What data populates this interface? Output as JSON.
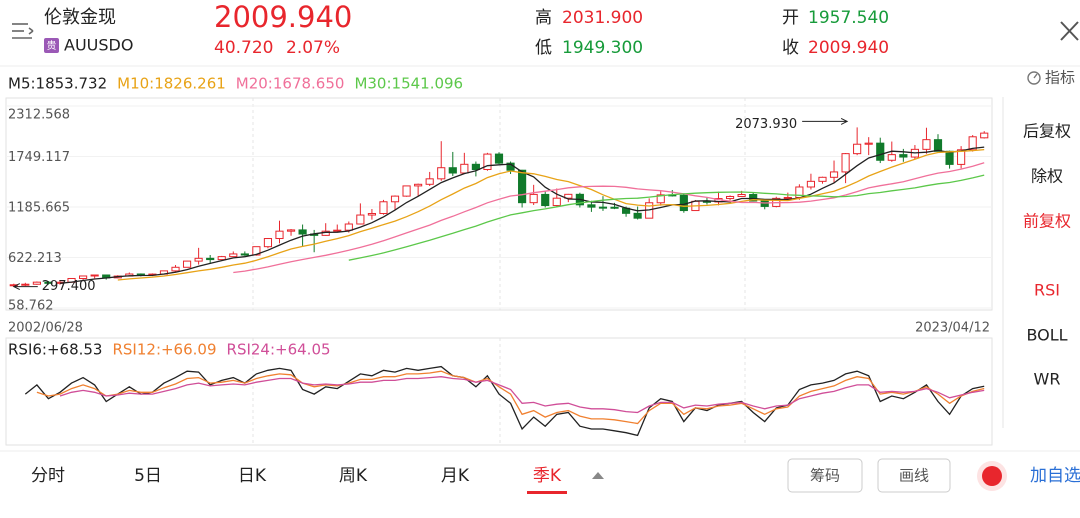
{
  "header": {
    "title": "伦敦金现",
    "badge": "贵",
    "symbol": "AUUSDO",
    "price": "2009.940",
    "change": "40.720",
    "change_pct": "2.07%",
    "stats": [
      {
        "label": "高",
        "value": "2031.900"
      },
      {
        "label": "低",
        "value": "1949.300"
      },
      {
        "label": "开",
        "value": "1957.540"
      },
      {
        "label": "收",
        "value": "2009.940"
      }
    ]
  },
  "chart_data": [
    {
      "type": "candlestick",
      "date_range": [
        "2002/06/28",
        "2023/04/12"
      ],
      "ylim": [
        58.762,
        2312.568
      ],
      "yticks": [
        58.762,
        622.213,
        1185.665,
        1749.117,
        2312.568
      ],
      "up_color": "#e8262d",
      "down_color": "#117a2b",
      "open": [
        310,
        318,
        324,
        347,
        334,
        346,
        388,
        416,
        427,
        395,
        415,
        438,
        428,
        437,
        473,
        513,
        582,
        613,
        599,
        632,
        662,
        650,
        743,
        834,
        916,
        930,
        884,
        869,
        916,
        927,
        996,
        1096,
        1113,
        1244,
        1307,
        1421,
        1439,
        1500,
        1624,
        1565,
        1662,
        1604,
        1776,
        1675,
        1596,
        1234,
        1326,
        1202,
        1284,
        1327,
        1210,
        1184,
        1183,
        1172,
        1115,
        1061,
        1233,
        1321,
        1316,
        1146,
        1249,
        1242,
        1280,
        1303,
        1325,
        1253,
        1192,
        1282,
        1292,
        1409,
        1472,
        1517,
        1577,
        1781,
        1886,
        1898,
        1707,
        1770,
        1743,
        1829,
        1937,
        1807,
        1661,
        1824,
        1957.54
      ],
      "high": [
        330,
        340,
        355,
        360,
        360,
        390,
        418,
        432,
        430,
        425,
        455,
        445,
        445,
        476,
        538,
        585,
        730,
        650,
        640,
        690,
        690,
        745,
        840,
        1033,
        940,
        990,
        930,
        1005,
        990,
        1024,
        1226,
        1163,
        1265,
        1315,
        1425,
        1447,
        1577,
        1920,
        1800,
        1790,
        1693,
        1790,
        1796,
        1693,
        1600,
        1433,
        1362,
        1392,
        1332,
        1345,
        1255,
        1307,
        1232,
        1191,
        1191,
        1282,
        1362,
        1375,
        1338,
        1264,
        1296,
        1357,
        1315,
        1366,
        1350,
        1265,
        1300,
        1346,
        1439,
        1557,
        1524,
        1704,
        1788,
        2073.93,
        1965,
        1959,
        1916,
        1834,
        1877,
        2070,
        1998,
        1814,
        1865,
        1988,
        2031.9
      ],
      "low": [
        297.4,
        304,
        318,
        320,
        319,
        342,
        370,
        390,
        375,
        390,
        410,
        411,
        415,
        430,
        456,
        520,
        543,
        560,
        600,
        630,
        640,
        642,
        725,
        780,
        865,
        740,
        681,
        865,
        900,
        900,
        990,
        1045,
        1100,
        1157,
        1300,
        1309,
        1420,
        1478,
        1532,
        1560,
        1527,
        1590,
        1666,
        1554,
        1180,
        1208,
        1180,
        1182,
        1240,
        1180,
        1131,
        1142,
        1162,
        1077,
        1046,
        1061,
        1200,
        1302,
        1122,
        1146,
        1214,
        1204,
        1260,
        1302,
        1250,
        1160,
        1182,
        1266,
        1266,
        1381,
        1446,
        1451,
        1452,
        1764,
        1765,
        1676,
        1690,
        1690,
        1721,
        1780,
        1805,
        1614,
        1617,
        1804,
        1949.3
      ],
      "close": [
        318,
        324,
        347,
        334,
        346,
        388,
        416,
        427,
        395,
        415,
        438,
        428,
        437,
        473,
        513,
        582,
        613,
        599,
        632,
        662,
        650,
        743,
        834,
        916,
        930,
        884,
        869,
        916,
        927,
        996,
        1096,
        1113,
        1244,
        1307,
        1421,
        1439,
        1500,
        1624,
        1565,
        1662,
        1604,
        1776,
        1675,
        1596,
        1234,
        1326,
        1202,
        1284,
        1327,
        1210,
        1184,
        1183,
        1172,
        1115,
        1061,
        1233,
        1321,
        1316,
        1146,
        1249,
        1242,
        1280,
        1303,
        1325,
        1253,
        1192,
        1282,
        1292,
        1409,
        1472,
        1517,
        1577,
        1781,
        1886,
        1898,
        1707,
        1770,
        1743,
        1829,
        1937,
        1807,
        1661,
        1824,
        1969,
        2009.94
      ],
      "series": [
        {
          "name": "M5",
          "legend_label": "M5:1853.732",
          "color": "#222222",
          "values": [
            null,
            null,
            null,
            null,
            334,
            348,
            366,
            382,
            394,
            408,
            418,
            421,
            423,
            438,
            458,
            487,
            524,
            556,
            588,
            618,
            631,
            657,
            704,
            761,
            815,
            861,
            887,
            903,
            905,
            918,
            961,
            1010,
            1075,
            1151,
            1236,
            1305,
            1382,
            1458,
            1510,
            1558,
            1591,
            1646,
            1656,
            1663,
            1577,
            1521,
            1407,
            1328,
            1275,
            1270,
            1241,
            1237,
            1215,
            1173,
            1143,
            1153,
            1180,
            1209,
            1215,
            1253,
            1255,
            1247,
            1244,
            1280,
            1281,
            1271,
            1271,
            1269,
            1286,
            1329,
            1394,
            1453,
            1551,
            1647,
            1732,
            1770,
            1808,
            1801,
            1789,
            1797,
            1817,
            1795,
            1812,
            1840,
            1853.732
          ]
        },
        {
          "name": "M10",
          "legend_label": "M10:1826.261",
          "color": "#e8a317",
          "values": [
            null,
            null,
            null,
            null,
            null,
            null,
            null,
            null,
            null,
            371,
            383,
            394,
            403,
            416,
            433,
            453,
            473,
            490,
            513,
            538,
            559,
            591,
            630,
            675,
            717,
            746,
            772,
            804,
            833,
            867,
            911,
            949,
            989,
            1028,
            1077,
            1133,
            1196,
            1267,
            1331,
            1397,
            1448,
            1514,
            1557,
            1587,
            1568,
            1556,
            1527,
            1492,
            1469,
            1424,
            1381,
            1322,
            1272,
            1224,
            1207,
            1197,
            1209,
            1212,
            1194,
            1198,
            1204,
            1214,
            1227,
            1248,
            1267,
            1263,
            1259,
            1257,
            1283,
            1305,
            1333,
            1362,
            1410,
            1467,
            1531,
            1582,
            1631,
            1676,
            1718,
            1765,
            1794,
            1802,
            1807,
            1815,
            1826.261
          ]
        },
        {
          "name": "M20",
          "legend_label": "M20:1678.650",
          "color": "#f0709a",
          "values": [
            null,
            null,
            null,
            null,
            null,
            null,
            null,
            null,
            null,
            null,
            null,
            null,
            null,
            null,
            null,
            null,
            null,
            null,
            null,
            455,
            471,
            493,
            517,
            546,
            575,
            600,
            623,
            647,
            673,
            703,
            735,
            770,
            810,
            852,
            897,
            940,
            984,
            1036,
            1082,
            1132,
            1180,
            1232,
            1273,
            1308,
            1323,
            1345,
            1362,
            1380,
            1400,
            1411,
            1415,
            1418,
            1415,
            1406,
            1388,
            1377,
            1368,
            1352,
            1332,
            1311,
            1293,
            1268,
            1250,
            1236,
            1237,
            1230,
            1234,
            1235,
            1239,
            1252,
            1269,
            1288,
            1319,
            1358,
            1399,
            1423,
            1445,
            1467,
            1501,
            1535,
            1564,
            1582,
            1609,
            1641,
            1678.65
          ]
        },
        {
          "name": "M30",
          "legend_label": "M30:1541.096",
          "color": "#5cc84a",
          "values": [
            null,
            null,
            null,
            null,
            null,
            null,
            null,
            null,
            null,
            null,
            null,
            null,
            null,
            null,
            null,
            null,
            null,
            null,
            null,
            null,
            null,
            null,
            null,
            null,
            null,
            null,
            null,
            null,
            null,
            592,
            618,
            645,
            674,
            707,
            742,
            778,
            814,
            854,
            892,
            934,
            973,
            1018,
            1059,
            1097,
            1121,
            1145,
            1165,
            1188,
            1211,
            1230,
            1247,
            1262,
            1273,
            1280,
            1284,
            1296,
            1311,
            1324,
            1332,
            1340,
            1345,
            1350,
            1352,
            1353,
            1347,
            1339,
            1332,
            1321,
            1316,
            1309,
            1306,
            1299,
            1303,
            1313,
            1335,
            1348,
            1366,
            1382,
            1399,
            1423,
            1444,
            1459,
            1482,
            1510,
            1541.096
          ]
        }
      ],
      "annotations": [
        {
          "label": "2073.930",
          "value": 2073.93
        },
        {
          "label": "297.400",
          "value": 297.4
        }
      ]
    },
    {
      "type": "line",
      "ylim": [
        10,
        95
      ],
      "series": [
        {
          "name": "RSI6",
          "legend_label": "RSI6:+68.53",
          "color": "#222222",
          "values": [
            null,
            60,
            70,
            55,
            62,
            72,
            78,
            70,
            52,
            60,
            68,
            60,
            62,
            72,
            78,
            85,
            84,
            70,
            75,
            78,
            72,
            82,
            86,
            88,
            86,
            65,
            60,
            68,
            66,
            74,
            82,
            80,
            86,
            84,
            88,
            86,
            88,
            90,
            80,
            78,
            68,
            80,
            60,
            50,
            22,
            35,
            25,
            38,
            40,
            25,
            22,
            22,
            20,
            18,
            15,
            45,
            55,
            52,
            30,
            45,
            42,
            48,
            50,
            52,
            40,
            30,
            45,
            48,
            65,
            70,
            72,
            75,
            82,
            85,
            80,
            52,
            58,
            55,
            62,
            70,
            52,
            38,
            58,
            66,
            68.53
          ]
        },
        {
          "name": "RSI12",
          "legend_label": "RSI12:+66.09",
          "color": "#f08030",
          "values": [
            null,
            null,
            62,
            58,
            60,
            66,
            70,
            66,
            58,
            60,
            64,
            62,
            62,
            67,
            71,
            77,
            78,
            72,
            73,
            75,
            72,
            77,
            80,
            82,
            81,
            72,
            68,
            70,
            69,
            72,
            76,
            76,
            79,
            79,
            82,
            82,
            83,
            85,
            80,
            78,
            73,
            77,
            68,
            60,
            38,
            42,
            35,
            40,
            42,
            36,
            33,
            33,
            32,
            30,
            28,
            42,
            50,
            50,
            38,
            45,
            44,
            47,
            48,
            50,
            44,
            38,
            44,
            46,
            58,
            63,
            66,
            69,
            75,
            79,
            77,
            60,
            62,
            60,
            63,
            68,
            60,
            50,
            58,
            63,
            66.09
          ]
        },
        {
          "name": "RSI24",
          "legend_label": "RSI24:+64.05",
          "color": "#d04e98",
          "values": [
            null,
            null,
            null,
            null,
            58,
            62,
            64,
            62,
            58,
            59,
            61,
            60,
            60,
            63,
            66,
            70,
            72,
            69,
            70,
            71,
            70,
            73,
            75,
            77,
            77,
            72,
            70,
            71,
            70,
            71,
            73,
            73,
            75,
            75,
            77,
            77,
            78,
            79,
            77,
            76,
            73,
            75,
            70,
            65,
            50,
            51,
            47,
            49,
            50,
            46,
            44,
            44,
            43,
            41,
            40,
            47,
            51,
            51,
            45,
            48,
            47,
            49,
            50,
            51,
            47,
            44,
            47,
            48,
            55,
            58,
            61,
            63,
            67,
            70,
            70,
            62,
            63,
            62,
            63,
            66,
            62,
            56,
            59,
            62,
            64.05
          ]
        }
      ]
    }
  ],
  "side_menu": {
    "indicator": "指标",
    "adjust": [
      "后复权",
      "除权",
      "前复权"
    ],
    "indicators": [
      "RSI",
      "BOLL",
      "WR"
    ]
  },
  "tabs": [
    "分时",
    "5日",
    "日K",
    "周K",
    "月K",
    "季K"
  ],
  "buttons": [
    "筹码",
    "画线"
  ],
  "add_watch": "加自选"
}
